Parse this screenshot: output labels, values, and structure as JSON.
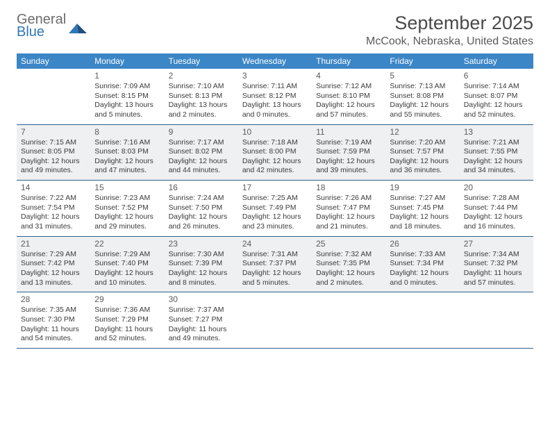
{
  "logo": {
    "word1": "General",
    "word2": "Blue"
  },
  "title": "September 2025",
  "location": "McCook, Nebraska, United States",
  "colors": {
    "header_bar": "#3b86c6",
    "week_divider": "#2f5f8a",
    "shaded_bg": "#eef0f2",
    "text": "#333333",
    "logo_gray": "#6b6b6b",
    "logo_blue": "#2f77b6"
  },
  "dow": [
    "Sunday",
    "Monday",
    "Tuesday",
    "Wednesday",
    "Thursday",
    "Friday",
    "Saturday"
  ],
  "weeks": [
    {
      "shaded": false,
      "days": [
        {
          "num": "",
          "sunrise": "",
          "sunset": "",
          "daylight": ""
        },
        {
          "num": "1",
          "sunrise": "Sunrise: 7:09 AM",
          "sunset": "Sunset: 8:15 PM",
          "daylight": "Daylight: 13 hours and 5 minutes."
        },
        {
          "num": "2",
          "sunrise": "Sunrise: 7:10 AM",
          "sunset": "Sunset: 8:13 PM",
          "daylight": "Daylight: 13 hours and 2 minutes."
        },
        {
          "num": "3",
          "sunrise": "Sunrise: 7:11 AM",
          "sunset": "Sunset: 8:12 PM",
          "daylight": "Daylight: 13 hours and 0 minutes."
        },
        {
          "num": "4",
          "sunrise": "Sunrise: 7:12 AM",
          "sunset": "Sunset: 8:10 PM",
          "daylight": "Daylight: 12 hours and 57 minutes."
        },
        {
          "num": "5",
          "sunrise": "Sunrise: 7:13 AM",
          "sunset": "Sunset: 8:08 PM",
          "daylight": "Daylight: 12 hours and 55 minutes."
        },
        {
          "num": "6",
          "sunrise": "Sunrise: 7:14 AM",
          "sunset": "Sunset: 8:07 PM",
          "daylight": "Daylight: 12 hours and 52 minutes."
        }
      ]
    },
    {
      "shaded": true,
      "days": [
        {
          "num": "7",
          "sunrise": "Sunrise: 7:15 AM",
          "sunset": "Sunset: 8:05 PM",
          "daylight": "Daylight: 12 hours and 49 minutes."
        },
        {
          "num": "8",
          "sunrise": "Sunrise: 7:16 AM",
          "sunset": "Sunset: 8:03 PM",
          "daylight": "Daylight: 12 hours and 47 minutes."
        },
        {
          "num": "9",
          "sunrise": "Sunrise: 7:17 AM",
          "sunset": "Sunset: 8:02 PM",
          "daylight": "Daylight: 12 hours and 44 minutes."
        },
        {
          "num": "10",
          "sunrise": "Sunrise: 7:18 AM",
          "sunset": "Sunset: 8:00 PM",
          "daylight": "Daylight: 12 hours and 42 minutes."
        },
        {
          "num": "11",
          "sunrise": "Sunrise: 7:19 AM",
          "sunset": "Sunset: 7:59 PM",
          "daylight": "Daylight: 12 hours and 39 minutes."
        },
        {
          "num": "12",
          "sunrise": "Sunrise: 7:20 AM",
          "sunset": "Sunset: 7:57 PM",
          "daylight": "Daylight: 12 hours and 36 minutes."
        },
        {
          "num": "13",
          "sunrise": "Sunrise: 7:21 AM",
          "sunset": "Sunset: 7:55 PM",
          "daylight": "Daylight: 12 hours and 34 minutes."
        }
      ]
    },
    {
      "shaded": false,
      "days": [
        {
          "num": "14",
          "sunrise": "Sunrise: 7:22 AM",
          "sunset": "Sunset: 7:54 PM",
          "daylight": "Daylight: 12 hours and 31 minutes."
        },
        {
          "num": "15",
          "sunrise": "Sunrise: 7:23 AM",
          "sunset": "Sunset: 7:52 PM",
          "daylight": "Daylight: 12 hours and 29 minutes."
        },
        {
          "num": "16",
          "sunrise": "Sunrise: 7:24 AM",
          "sunset": "Sunset: 7:50 PM",
          "daylight": "Daylight: 12 hours and 26 minutes."
        },
        {
          "num": "17",
          "sunrise": "Sunrise: 7:25 AM",
          "sunset": "Sunset: 7:49 PM",
          "daylight": "Daylight: 12 hours and 23 minutes."
        },
        {
          "num": "18",
          "sunrise": "Sunrise: 7:26 AM",
          "sunset": "Sunset: 7:47 PM",
          "daylight": "Daylight: 12 hours and 21 minutes."
        },
        {
          "num": "19",
          "sunrise": "Sunrise: 7:27 AM",
          "sunset": "Sunset: 7:45 PM",
          "daylight": "Daylight: 12 hours and 18 minutes."
        },
        {
          "num": "20",
          "sunrise": "Sunrise: 7:28 AM",
          "sunset": "Sunset: 7:44 PM",
          "daylight": "Daylight: 12 hours and 16 minutes."
        }
      ]
    },
    {
      "shaded": true,
      "days": [
        {
          "num": "21",
          "sunrise": "Sunrise: 7:29 AM",
          "sunset": "Sunset: 7:42 PM",
          "daylight": "Daylight: 12 hours and 13 minutes."
        },
        {
          "num": "22",
          "sunrise": "Sunrise: 7:29 AM",
          "sunset": "Sunset: 7:40 PM",
          "daylight": "Daylight: 12 hours and 10 minutes."
        },
        {
          "num": "23",
          "sunrise": "Sunrise: 7:30 AM",
          "sunset": "Sunset: 7:39 PM",
          "daylight": "Daylight: 12 hours and 8 minutes."
        },
        {
          "num": "24",
          "sunrise": "Sunrise: 7:31 AM",
          "sunset": "Sunset: 7:37 PM",
          "daylight": "Daylight: 12 hours and 5 minutes."
        },
        {
          "num": "25",
          "sunrise": "Sunrise: 7:32 AM",
          "sunset": "Sunset: 7:35 PM",
          "daylight": "Daylight: 12 hours and 2 minutes."
        },
        {
          "num": "26",
          "sunrise": "Sunrise: 7:33 AM",
          "sunset": "Sunset: 7:34 PM",
          "daylight": "Daylight: 12 hours and 0 minutes."
        },
        {
          "num": "27",
          "sunrise": "Sunrise: 7:34 AM",
          "sunset": "Sunset: 7:32 PM",
          "daylight": "Daylight: 11 hours and 57 minutes."
        }
      ]
    },
    {
      "shaded": false,
      "days": [
        {
          "num": "28",
          "sunrise": "Sunrise: 7:35 AM",
          "sunset": "Sunset: 7:30 PM",
          "daylight": "Daylight: 11 hours and 54 minutes."
        },
        {
          "num": "29",
          "sunrise": "Sunrise: 7:36 AM",
          "sunset": "Sunset: 7:29 PM",
          "daylight": "Daylight: 11 hours and 52 minutes."
        },
        {
          "num": "30",
          "sunrise": "Sunrise: 7:37 AM",
          "sunset": "Sunset: 7:27 PM",
          "daylight": "Daylight: 11 hours and 49 minutes."
        },
        {
          "num": "",
          "sunrise": "",
          "sunset": "",
          "daylight": ""
        },
        {
          "num": "",
          "sunrise": "",
          "sunset": "",
          "daylight": ""
        },
        {
          "num": "",
          "sunrise": "",
          "sunset": "",
          "daylight": ""
        },
        {
          "num": "",
          "sunrise": "",
          "sunset": "",
          "daylight": ""
        }
      ]
    }
  ]
}
